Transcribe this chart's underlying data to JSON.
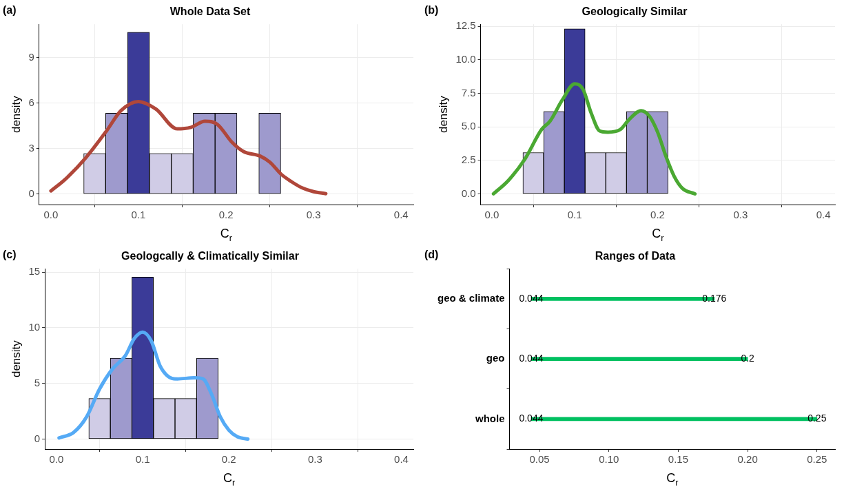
{
  "chart_data": [
    {
      "type": "histogram",
      "title": "Whole Data Set",
      "xlabel": "C$_{r}$",
      "ylabel": "density",
      "annotations": [
        "(a)"
      ],
      "bins": [
        0.0125,
        0.0375,
        0.0625,
        0.0875,
        0.1125,
        0.1375,
        0.1625,
        0.1875,
        0.2125,
        0.2375,
        0.2625,
        0.2875,
        0.3125,
        0.3375,
        0.3625,
        0.3875
      ],
      "values": [
        0,
        2.67,
        5.33,
        10.67,
        2.67,
        2.67,
        5.33,
        5.33,
        0,
        5.33,
        0,
        0,
        0,
        0,
        0
      ],
      "colors": [
        "#d0cce6",
        "#d0cce6",
        "#9e9acd",
        "#3b3b98",
        "#d0cce6",
        "#d0cce6",
        "#9e9acd",
        "#9e9acd",
        "#d0cce6",
        "#9e9acd",
        "#d0cce6",
        "#d0cce6",
        "#d0cce6",
        "#d0cce6",
        "#d0cce6"
      ],
      "series": [
        {
          "type": "line",
          "color": "#b0473a",
          "x": [
            0,
            0.017,
            0.04,
            0.064,
            0.08,
            0.1,
            0.12,
            0.144,
            0.16,
            0.176,
            0.19,
            0.207,
            0.22,
            0.239,
            0.25,
            0.263,
            0.275,
            0.287,
            0.3,
            0.314
          ],
          "values": [
            0.2,
            1.0,
            2.4,
            4.2,
            5.5,
            6.1,
            5.6,
            4.3,
            4.4,
            4.8,
            4.6,
            3.4,
            2.8,
            2.5,
            2.1,
            1.3,
            0.8,
            0.4,
            0.15,
            0.02
          ]
        }
      ],
      "xlim": [
        -0.0135,
        0.414
      ],
      "xticks": [
        {
          "value": 0,
          "label": "0.0"
        },
        {
          "value": 0.1,
          "label": "0.1"
        },
        {
          "value": 0.2,
          "label": "0.2"
        },
        {
          "value": 0.3,
          "label": "0.3"
        },
        {
          "value": 0.4,
          "label": "0.4"
        }
      ],
      "ylim": [
        -0.7,
        11.2
      ],
      "yticks": [
        0,
        3,
        6,
        9
      ],
      "grid": true,
      "legend": false,
      "marker": "none"
    },
    {
      "type": "histogram",
      "title": "Geologically Similar",
      "xlabel": "C$_{r}$",
      "ylabel": "density",
      "annotations": [
        "(b)"
      ],
      "bins": [
        0.0125,
        0.0375,
        0.0625,
        0.0875,
        0.1125,
        0.1375,
        0.1625,
        0.1875,
        0.2125,
        0.2375,
        0.2625,
        0.2875,
        0.3125,
        0.3375,
        0.3625,
        0.3875
      ],
      "values": [
        0,
        3.08,
        6.15,
        12.31,
        3.08,
        3.08,
        6.15,
        6.15,
        0,
        0,
        0,
        0,
        0,
        0,
        0
      ],
      "colors": [
        "#d0cce6",
        "#d0cce6",
        "#9e9acd",
        "#3b3b98",
        "#d0cce6",
        "#d0cce6",
        "#9e9acd",
        "#9e9acd",
        "#d0cce6",
        "#d0cce6",
        "#d0cce6",
        "#d0cce6",
        "#d0cce6",
        "#d0cce6",
        "#d0cce6"
      ],
      "series": [
        {
          "type": "line",
          "color": "#4aa832",
          "x": [
            0.002,
            0.02,
            0.04,
            0.06,
            0.07,
            0.085,
            0.1,
            0.11,
            0.12,
            0.13,
            0.14,
            0.155,
            0.165,
            0.18,
            0.19,
            0.2,
            0.21,
            0.22,
            0.23,
            0.245
          ],
          "values": [
            0,
            1.0,
            2.6,
            4.8,
            5.4,
            7.0,
            8.2,
            7.8,
            6.0,
            4.7,
            4.6,
            4.8,
            5.5,
            6.2,
            5.8,
            4.6,
            2.8,
            1.3,
            0.4,
            0
          ]
        }
      ],
      "xlim": [
        -0.0135,
        0.414
      ],
      "xticks": [
        {
          "value": 0,
          "label": "0.0"
        },
        {
          "value": 0.1,
          "label": "0.1"
        },
        {
          "value": 0.2,
          "label": "0.2"
        },
        {
          "value": 0.3,
          "label": "0.3"
        },
        {
          "value": 0.4,
          "label": "0.4"
        }
      ],
      "ylim": [
        -0.8,
        12.65
      ],
      "yticks": [
        {
          "value": 0,
          "label": "0.0"
        },
        {
          "value": 2.5,
          "label": "2.5"
        },
        {
          "value": 5,
          "label": "5.0"
        },
        {
          "value": 7.5,
          "label": "7.5"
        },
        {
          "value": 10,
          "label": "10.0"
        },
        {
          "value": 12.5,
          "label": "12.5"
        }
      ],
      "grid": true,
      "legend": false,
      "marker": "none"
    },
    {
      "type": "histogram",
      "title": "Geologcally & Climatically Similar",
      "xlabel": "C$_{r}$",
      "ylabel": "density",
      "annotations": [
        "(c)"
      ],
      "bins": [
        0.0125,
        0.0375,
        0.0625,
        0.0875,
        0.1125,
        0.1375,
        0.1625,
        0.1875,
        0.2125,
        0.2375,
        0.2625,
        0.2875,
        0.3125,
        0.3375,
        0.3625,
        0.3875
      ],
      "values": [
        0,
        3.64,
        7.27,
        14.55,
        3.64,
        3.64,
        7.27,
        0,
        0,
        0,
        0,
        0,
        0,
        0,
        0
      ],
      "colors": [
        "#d0cce6",
        "#d0cce6",
        "#9e9acd",
        "#3b3b98",
        "#d0cce6",
        "#d0cce6",
        "#9e9acd",
        "#d0cce6",
        "#d0cce6",
        "#d0cce6",
        "#d0cce6",
        "#d0cce6",
        "#d0cce6",
        "#d0cce6",
        "#d0cce6"
      ],
      "series": [
        {
          "type": "line",
          "color": "#55aaf5",
          "x": [
            0.003,
            0.02,
            0.035,
            0.05,
            0.065,
            0.08,
            0.09,
            0.1,
            0.11,
            0.12,
            0.13,
            0.14,
            0.16,
            0.17,
            0.18,
            0.19,
            0.2,
            0.21,
            0.222
          ],
          "values": [
            0.1,
            0.6,
            2.0,
            4.5,
            6.3,
            7.5,
            9.0,
            9.6,
            8.8,
            6.6,
            5.6,
            5.4,
            5.5,
            5.4,
            4.0,
            2.0,
            0.8,
            0.2,
            0
          ]
        }
      ],
      "xlim": [
        -0.0135,
        0.414
      ],
      "xticks": [
        {
          "value": 0,
          "label": "0.0"
        },
        {
          "value": 0.1,
          "label": "0.1"
        },
        {
          "value": 0.2,
          "label": "0.2"
        },
        {
          "value": 0.3,
          "label": "0.3"
        },
        {
          "value": 0.4,
          "label": "0.4"
        }
      ],
      "ylim": [
        -0.9,
        15.3
      ],
      "yticks": [
        0,
        5,
        10,
        15
      ],
      "grid": true,
      "legend": false,
      "marker": "none"
    },
    {
      "type": "bar",
      "orientation": "horizontal",
      "title": "Ranges of Data",
      "xlabel": "C$_{r}$",
      "annotations": [
        "(d)",
        {
          "text": "0.044",
          "x": 0.044,
          "y": "geo & climate"
        },
        {
          "text": "0.176",
          "x": 0.176,
          "y": "geo & climate"
        },
        {
          "text": "0.044",
          "x": 0.044,
          "y": "geo"
        },
        {
          "text": "0.2",
          "x": 0.2,
          "y": "geo"
        },
        {
          "text": "0.044",
          "x": 0.044,
          "y": "whole"
        },
        {
          "text": "0.25",
          "x": 0.25,
          "y": "whole"
        }
      ],
      "categories": [
        "geo & climate",
        "geo",
        "whole"
      ],
      "base": [
        0.044,
        0.044,
        0.044
      ],
      "values": [
        0.132,
        0.156,
        0.206
      ],
      "color": "#00c060",
      "xlim": [
        0.0284,
        0.263
      ],
      "xticks": [
        {
          "value": 0.05,
          "label": "0.05"
        },
        {
          "value": 0.1,
          "label": "0.10"
        },
        {
          "value": 0.15,
          "label": "0.15"
        },
        {
          "value": 0.2,
          "label": "0.20"
        },
        {
          "value": 0.25,
          "label": "0.25"
        }
      ],
      "grid": false,
      "legend": false
    }
  ]
}
